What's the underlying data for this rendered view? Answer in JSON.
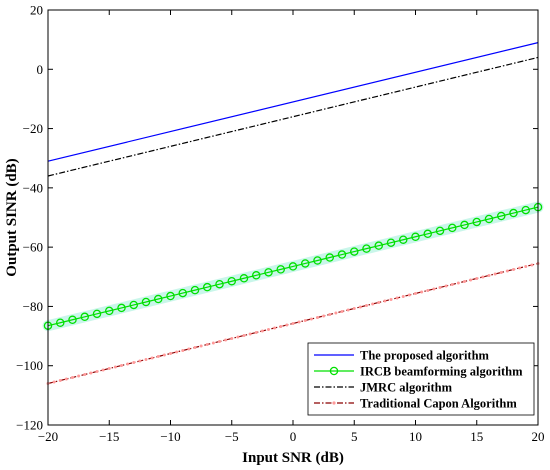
{
  "chart_data": {
    "type": "line",
    "xlabel": "Input SNR (dB)",
    "ylabel": "Output SINR (dB)",
    "xlim": [
      -20,
      20
    ],
    "ylim": [
      -120,
      20
    ],
    "x_ticks": [
      -20,
      -15,
      -10,
      -5,
      0,
      5,
      10,
      15,
      20
    ],
    "y_ticks": [
      -120,
      -100,
      -80,
      -60,
      -40,
      -20,
      0,
      20
    ],
    "x_tick_labels": [
      "−20",
      "−15",
      "−10",
      "−5",
      "0",
      "5",
      "10",
      "15",
      "20"
    ],
    "y_tick_labels": [
      "−120",
      "−100",
      "−80",
      "−60",
      "−40",
      "−20",
      "0",
      "20"
    ],
    "grid": false,
    "legend_position": "bottom-right",
    "series": [
      {
        "name": "The proposed algorithm",
        "color": "#0000ff",
        "style": "solid",
        "marker": "none",
        "x": [
          -20,
          20
        ],
        "values": [
          -31,
          9
        ]
      },
      {
        "name": "IRCB beamforming algorithm",
        "color": "#00e000",
        "style": "solid",
        "marker": "circle",
        "x": [
          -20,
          -19,
          -18,
          -17,
          -16,
          -15,
          -14,
          -13,
          -12,
          -11,
          -10,
          -9,
          -8,
          -7,
          -6,
          -5,
          -4,
          -3,
          -2,
          -1,
          0,
          1,
          2,
          3,
          4,
          5,
          6,
          7,
          8,
          9,
          10,
          11,
          12,
          13,
          14,
          15,
          16,
          17,
          18,
          19,
          20
        ],
        "values": [
          -86.5,
          -85.5,
          -84.5,
          -83.5,
          -82.5,
          -81.5,
          -80.5,
          -79.5,
          -78.5,
          -77.5,
          -76.5,
          -75.5,
          -74.5,
          -73.5,
          -72.5,
          -71.5,
          -70.5,
          -69.5,
          -68.5,
          -67.5,
          -66.5,
          -65.5,
          -64.5,
          -63.5,
          -62.5,
          -61.5,
          -60.5,
          -59.5,
          -58.5,
          -57.5,
          -56.5,
          -55.5,
          -54.5,
          -53.5,
          -52.5,
          -51.5,
          -50.5,
          -49.5,
          -48.5,
          -47.5,
          -46.5
        ]
      },
      {
        "name": "JMRC algorithm",
        "color": "#000000",
        "style": "dashdot",
        "marker": "none",
        "x": [
          -20,
          20
        ],
        "values": [
          -36,
          4
        ]
      },
      {
        "name": "Traditional Capon Algorithm",
        "color": "#8b0000",
        "style": "dashdot",
        "marker": "dot",
        "x": [
          -20,
          20
        ],
        "values": [
          -106,
          -65.5
        ]
      }
    ]
  }
}
